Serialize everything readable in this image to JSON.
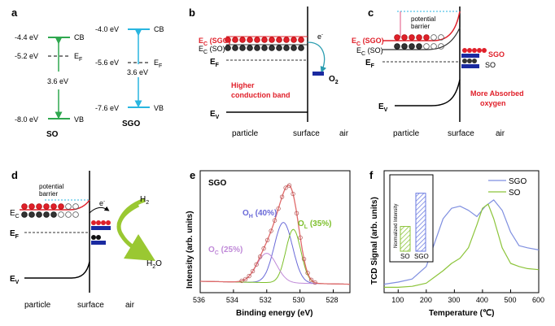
{
  "panels": {
    "a": {
      "label": "a",
      "SO": {
        "name": "SO",
        "CB": "-4.4 eV",
        "EF": "-5.2 eV",
        "VB": "-8.0 eV",
        "gap": "3.6 eV",
        "CB_tag": "CB",
        "VB_tag": "VB",
        "EF_tag": "E",
        "EF_sub": "F"
      },
      "SGO": {
        "name": "SGO",
        "CB": "-4.0 eV",
        "EF": "-5.6 eV",
        "VB": "-7.6 eV",
        "gap": "3.6 eV",
        "CB_tag": "CB",
        "VB_tag": "VB",
        "EF_tag": "E",
        "EF_sub": "F"
      },
      "colors": {
        "SO": "#2fa84f",
        "SGO": "#29b6e0"
      }
    },
    "b": {
      "label": "b",
      "ec_sgo": "E",
      "ec_sgo_sub": "C",
      "ec_sgo_rest": " (SGO)",
      "ec_so": "E",
      "ec_so_sub": "C",
      "ec_so_rest": " (SO)",
      "ef": "E",
      "ef_sub": "F",
      "ev": "E",
      "ev_sub": "V",
      "electron": "e",
      "electron_sup": "-",
      "o2": "O",
      "o2_sub": "2",
      "note1": "Higher",
      "note2": "conduction band",
      "x_particle": "particle",
      "x_surface": "surface",
      "x_air": "air"
    },
    "c": {
      "label": "c",
      "barrier1": "potential",
      "barrier2": "barrier",
      "ec_sgo": "E",
      "ec_sgo_sub": "C",
      "ec_sgo_rest": " (SGO)",
      "ec_so": "E",
      "ec_so_sub": "C",
      "ec_so_rest": " (SO)",
      "ef": "E",
      "ef_sub": "F",
      "ev": "E",
      "ev_sub": "V",
      "sgo": "SGO",
      "so": "SO",
      "note1": "More Absorbed",
      "note2": "oxygen",
      "x_particle": "particle",
      "x_surface": "surface",
      "x_air": "air"
    },
    "d": {
      "label": "d",
      "barrier1": "potential",
      "barrier2": "barrier",
      "ec": "E",
      "ec_sub": "C",
      "ef": "E",
      "ef_sub": "F",
      "ev": "E",
      "ev_sub": "V",
      "electron": "e",
      "electron_sup": "-",
      "h2": "H",
      "h2_sub": "2",
      "h2o": "H",
      "h2o_sub": "2",
      "h2o_rest": "O",
      "x_particle": "particle",
      "x_surface": "surface",
      "x_air": "air"
    },
    "e": {
      "label": "e",
      "title": "SGO",
      "xlabel": "Binding energy (eV)",
      "ylabel": "Intensity (arb. units)",
      "oh": "O",
      "oh_sub": "H",
      "oh_pct": " (40%)",
      "ol": "O",
      "ol_sub": "L",
      "ol_pct": " (35%)",
      "oc": "O",
      "oc_sub": "C",
      "oc_pct": " (25%)",
      "colors": {
        "OH": "#6a6ad8",
        "OL": "#7cbf2a",
        "OC": "#c08ad8",
        "fit": "#e06a6a"
      }
    },
    "f": {
      "label": "f",
      "xlabel": "Temperature (℃)",
      "ylabel": "TCD Signal (arb. units)",
      "inset_ylabel": "Normalized Intensity",
      "inset_so": "SO",
      "inset_sgo": "SGO",
      "colors": {
        "SGO": "#7f8fe0",
        "SO": "#8cc43a"
      }
    }
  },
  "chart_data": [
    {
      "type": "line",
      "panel": "e",
      "title": "SGO",
      "xlabel": "Binding energy (eV)",
      "ylabel": "Intensity (arb. units)",
      "xlim": [
        536,
        527
      ],
      "xticks": [
        536,
        534,
        532,
        530,
        528
      ],
      "series": [
        {
          "name": "O_H (40%)",
          "center": 531.0,
          "width": 0.55,
          "height": 0.62
        },
        {
          "name": "O_L (35%)",
          "center": 530.4,
          "width": 0.45,
          "height": 0.55
        },
        {
          "name": "O_C (25%)",
          "center": 532.0,
          "width": 0.6,
          "height": 0.3
        }
      ]
    },
    {
      "type": "line",
      "panel": "f",
      "xlabel": "Temperature (℃)",
      "ylabel": "TCD Signal (arb. units)",
      "xlim": [
        50,
        600
      ],
      "xticks": [
        100,
        200,
        300,
        400,
        500,
        600
      ],
      "series": [
        {
          "name": "SGO",
          "x": [
            50,
            100,
            150,
            200,
            230,
            260,
            290,
            320,
            350,
            380,
            410,
            440,
            470,
            500,
            530,
            560,
            600
          ],
          "y": [
            0.05,
            0.07,
            0.1,
            0.22,
            0.45,
            0.68,
            0.78,
            0.8,
            0.76,
            0.7,
            0.8,
            0.86,
            0.76,
            0.55,
            0.42,
            0.4,
            0.38
          ]
        },
        {
          "name": "SO",
          "x": [
            50,
            100,
            150,
            200,
            230,
            260,
            290,
            320,
            350,
            380,
            400,
            420,
            440,
            470,
            500,
            530,
            560,
            600
          ],
          "y": [
            0.02,
            0.02,
            0.03,
            0.06,
            0.12,
            0.18,
            0.25,
            0.3,
            0.4,
            0.62,
            0.78,
            0.82,
            0.68,
            0.4,
            0.25,
            0.22,
            0.2,
            0.19
          ]
        }
      ],
      "inset": {
        "type": "bar",
        "categories": [
          "SO",
          "SGO"
        ],
        "values": [
          0.35,
          0.82
        ]
      }
    }
  ]
}
